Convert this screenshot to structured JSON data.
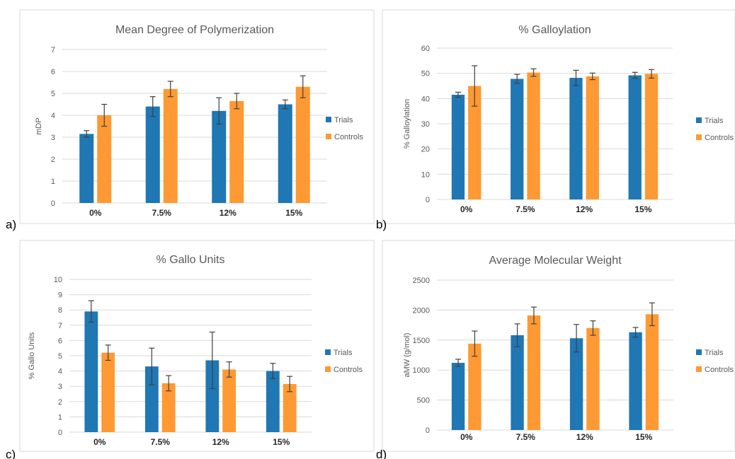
{
  "colors": {
    "trials": "#1f77b4",
    "controls": "#ff9933"
  },
  "chart_data": [
    {
      "type": "bar",
      "panel": "a)",
      "title": "Mean Degree of Polymerization",
      "ylabel": "mDP",
      "xlabel": "",
      "categories": [
        "0%",
        "7.5%",
        "12%",
        "15%"
      ],
      "ylim": [
        0,
        7
      ],
      "yticks": [
        "0",
        "1",
        "2",
        "3",
        "4",
        "5",
        "6",
        "7"
      ],
      "legend_position": "right",
      "grid": true,
      "series": [
        {
          "name": "Trials",
          "values": [
            3.15,
            4.4,
            4.2,
            4.5
          ],
          "errors": [
            0.15,
            0.45,
            0.6,
            0.2
          ]
        },
        {
          "name": "Controls",
          "values": [
            4.0,
            5.2,
            4.65,
            5.3
          ],
          "errors": [
            0.5,
            0.35,
            0.35,
            0.5
          ]
        }
      ]
    },
    {
      "type": "bar",
      "panel": "b)",
      "title": "% Galloylation",
      "ylabel": "% Galloylation",
      "xlabel": "",
      "categories": [
        "0%",
        "7.5%",
        "12%",
        "15%"
      ],
      "ylim": [
        0,
        60
      ],
      "yticks": [
        "0",
        "10",
        "20",
        "30",
        "40",
        "50",
        "60"
      ],
      "legend_position": "right",
      "grid": true,
      "series": [
        {
          "name": "Trials",
          "values": [
            41.5,
            47.8,
            48.2,
            49.2
          ],
          "errors": [
            1.0,
            1.8,
            3.0,
            1.2
          ]
        },
        {
          "name": "Controls",
          "values": [
            45.0,
            50.3,
            48.8,
            49.8
          ],
          "errors": [
            8.0,
            1.5,
            1.3,
            1.7
          ]
        }
      ]
    },
    {
      "type": "bar",
      "panel": "c)",
      "title": "% Gallo Units",
      "ylabel": "% Gallo Units",
      "xlabel": "",
      "categories": [
        "0%",
        "7.5%",
        "12%",
        "15%"
      ],
      "ylim": [
        0,
        10
      ],
      "yticks": [
        "0",
        "1",
        "2",
        "3",
        "4",
        "5",
        "6",
        "7",
        "8",
        "9",
        "10"
      ],
      "legend_position": "right",
      "grid": true,
      "series": [
        {
          "name": "Trials",
          "values": [
            7.9,
            4.3,
            4.7,
            4.0
          ],
          "errors": [
            0.7,
            1.2,
            1.85,
            0.5
          ]
        },
        {
          "name": "Controls",
          "values": [
            5.2,
            3.2,
            4.1,
            3.15
          ],
          "errors": [
            0.5,
            0.5,
            0.5,
            0.5
          ]
        }
      ]
    },
    {
      "type": "bar",
      "panel": "d)",
      "title": "Average Molecular Weight",
      "ylabel": "aMW (g/mol)",
      "xlabel": "",
      "categories": [
        "0%",
        "7.5%",
        "12%",
        "15%"
      ],
      "ylim": [
        0,
        2500
      ],
      "yticks": [
        "0",
        "500",
        "1000",
        "1500",
        "2000",
        "2500"
      ],
      "legend_position": "right",
      "grid": true,
      "series": [
        {
          "name": "Trials",
          "values": [
            1120,
            1580,
            1530,
            1630
          ],
          "errors": [
            60,
            190,
            230,
            80
          ]
        },
        {
          "name": "Controls",
          "values": [
            1440,
            1910,
            1700,
            1930
          ],
          "errors": [
            210,
            140,
            120,
            190
          ]
        }
      ]
    }
  ]
}
